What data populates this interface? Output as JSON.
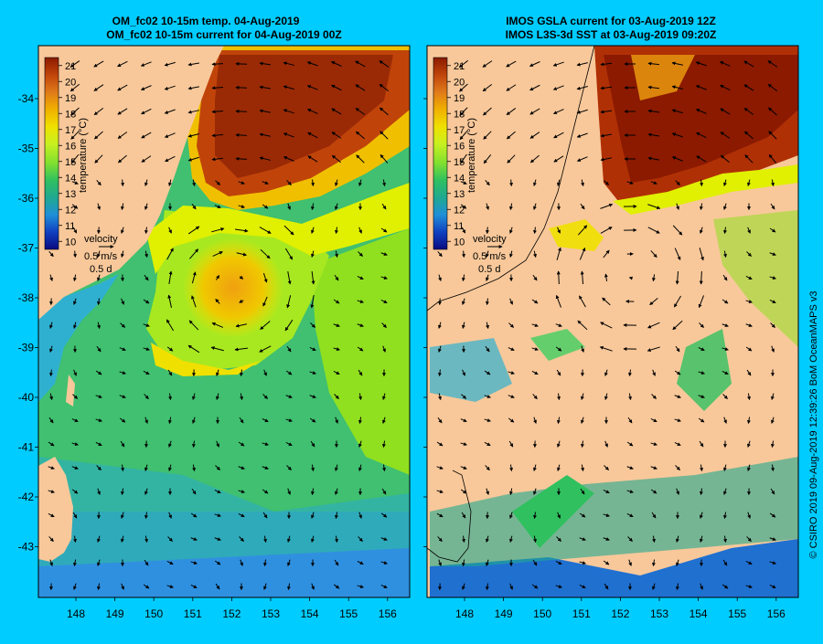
{
  "left_panel": {
    "title_line1": "OM_fc02 10-15m temp. 04-Aug-2019",
    "title_line2": "OM_fc02 10-15m current for 04-Aug-2019 00Z",
    "colorbar_label": "temperature (°C)",
    "colorbar_ticks": [
      "21",
      "20",
      "19",
      "18",
      "17",
      "16",
      "15",
      "14",
      "13",
      "12",
      "11",
      "10"
    ],
    "velocity_label": "velocity",
    "velocity_scale": "0.5 m/s",
    "velocity_time": "0.5 d"
  },
  "right_panel": {
    "title_line1": "IMOS GSLA current for 03-Aug-2019 12Z",
    "title_line2": "IMOS L3S-3d SST at 03-Aug-2019 09:20Z",
    "colorbar_label": "temperature (°C)",
    "colorbar_ticks": [
      "21",
      "20",
      "19",
      "18",
      "17",
      "16",
      "15",
      "14",
      "13",
      "12",
      "11",
      "10"
    ],
    "velocity_label": "velocity",
    "velocity_scale": "0.5 m/s",
    "velocity_time": "0.5 d"
  },
  "lat_labels": [
    "-34",
    "-35",
    "-36",
    "-37",
    "-38",
    "-39",
    "-40",
    "-41",
    "-42",
    "-43"
  ],
  "lon_labels": [
    "148",
    "149",
    "150",
    "151",
    "152",
    "153",
    "154",
    "155",
    "156"
  ],
  "credit": "© CSIRO 2019   09-Aug-2019 12:39:26 BoM OceanMAPS v3",
  "colors": {
    "background": "#00ccff",
    "land": "#f8c89a",
    "colorbar_stops": [
      "#8b1a00",
      "#c0440a",
      "#e07a1a",
      "#f0b000",
      "#f0e000",
      "#c8f020",
      "#80e030",
      "#30c060",
      "#20a890",
      "#2070d0",
      "#1030b0",
      "#0a0a80"
    ]
  }
}
